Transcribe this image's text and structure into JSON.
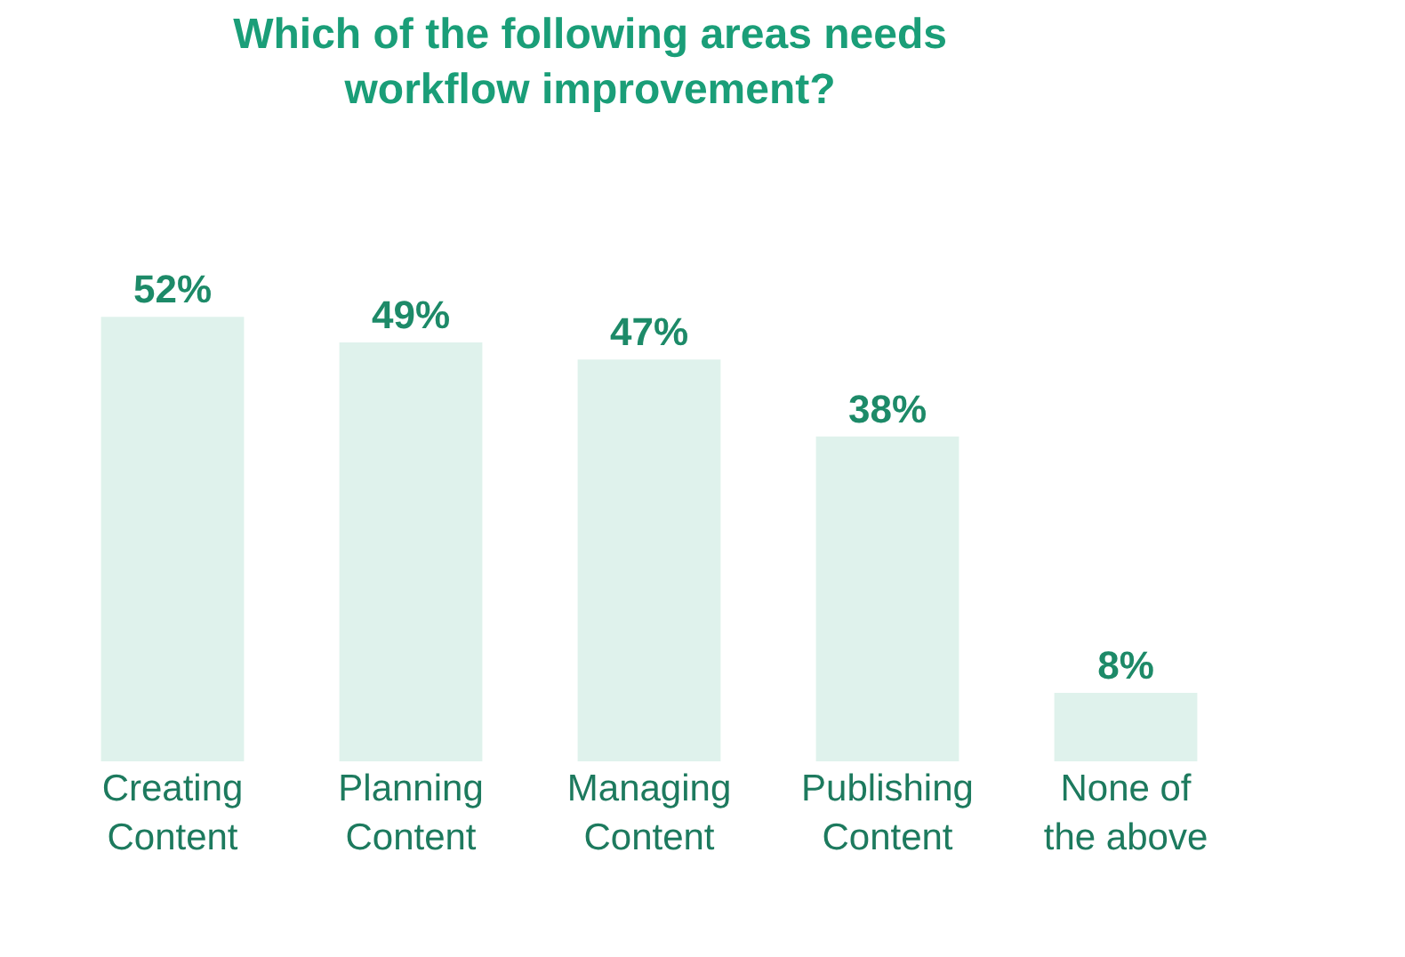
{
  "chart_data": {
    "type": "bar",
    "title": "Which of the following areas needs\nworkflow improvement?",
    "categories": [
      "Creating\nContent",
      "Planning\nContent",
      "Managing\nContent",
      "Publishing\nContent",
      "None of\nthe above"
    ],
    "values": [
      52,
      49,
      47,
      38,
      8
    ],
    "value_labels": [
      "52%",
      "49%",
      "47%",
      "38%",
      "8%"
    ],
    "color": "#dff2ec"
  }
}
